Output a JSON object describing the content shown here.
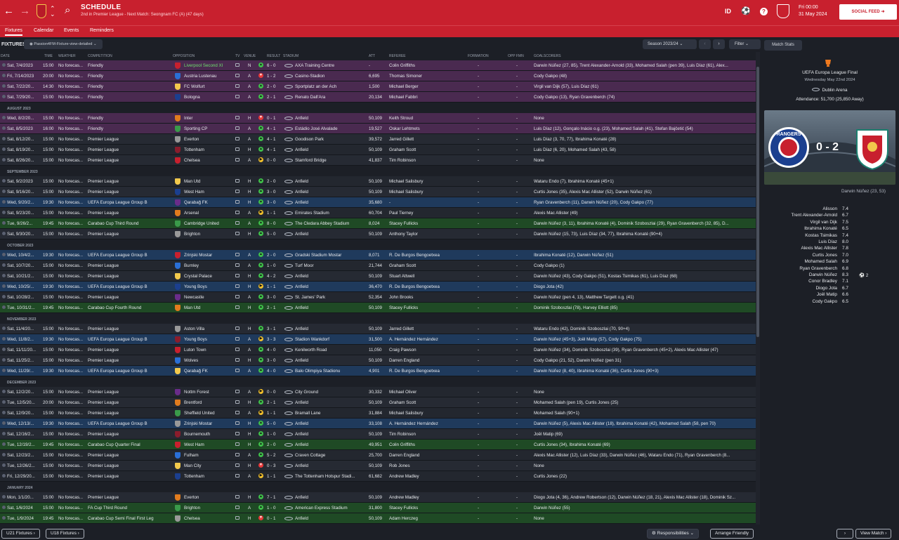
{
  "header": {
    "title": "SCHEDULE",
    "subtitle": "2nd in Premier League - Next Match: Seongnam FC (A) (47 days)",
    "date_time": "Fri 00:00",
    "date": "31 May 2024",
    "lang": "ID",
    "social_feed": "SOCIAL FEED"
  },
  "tabs": [
    "Fixtures",
    "Calendar",
    "Events",
    "Reminders"
  ],
  "toolbar": {
    "label": "FIXTURES",
    "view": "Passion4FM-Fixture-view-detailed",
    "season": "Season 2023/24",
    "filter": "Filter",
    "match_stats": "Match Stats"
  },
  "columns": [
    "DATE",
    "TIME",
    "WEATHER",
    "COMPETITION",
    "OPPOSITION",
    "TV",
    "VENUE",
    "RESULT",
    "STADIUM",
    "ATT",
    "REFEREE",
    "FORMATION",
    "OPP FMN",
    "GOALSCORERS"
  ],
  "months": {
    "aug": "AUGUST 2023",
    "sep": "SEPTEMBER 2023",
    "oct": "OCTOBER 2023",
    "nov": "NOVEMBER 2023",
    "dec": "DECEMBER 2023",
    "jan": "JANUARY 2024"
  },
  "weather": "No forecas...",
  "dash": "-",
  "fixtures": [
    {
      "date": "Sat, 7/4/2023",
      "time": "15:00",
      "comp": "Friendly",
      "opp": "Liverpool Second XI",
      "venue": "N",
      "res": "6 - 0",
      "rc": "w",
      "stadium": "AXA Training Centre",
      "att": "-",
      "ref": "Colin Griffiths",
      "scorers": "Darwin Núñez (27, 85), Trent Alexander-Arnold (33), Mohamed Salah (pen 39), Luis Díaz (61), Alex...",
      "type": "friendly"
    },
    {
      "date": "Fri, 7/14/2023",
      "time": "20:00",
      "comp": "Friendly",
      "opp": "Austria Lustenau",
      "venue": "A",
      "res": "1 - 2",
      "rc": "l",
      "stadium": "Casino-Stadion",
      "att": "6,695",
      "ref": "Thomas Simoner",
      "scorers": "Cody Gakpo (48)",
      "type": "friendly"
    },
    {
      "date": "Sat, 7/22/20...",
      "time": "14:30",
      "comp": "Friendly",
      "opp": "FC Wolfurt",
      "venue": "A",
      "res": "2 - 0",
      "rc": "w",
      "stadium": "Sportplatz an der Ach",
      "att": "1,500",
      "ref": "Michael Berger",
      "scorers": "Virgil van Dijk (57), Luis Díaz (61)",
      "type": "friendly"
    },
    {
      "date": "Sat, 7/29/20...",
      "time": "15:00",
      "comp": "Friendly",
      "opp": "Bologna",
      "venue": "A",
      "res": "2 - 1",
      "rc": "w",
      "stadium": "Renato Dall'Ara",
      "att": "20,134",
      "ref": "Michael Fabbri",
      "scorers": "Cody Gakpo (13), Ryan Gravenberch (74)",
      "type": "friendly"
    },
    {
      "month": "aug"
    },
    {
      "date": "Wed, 8/2/20...",
      "time": "15:00",
      "comp": "Friendly",
      "opp": "Inter",
      "venue": "H",
      "res": "0 - 1",
      "rc": "l",
      "stadium": "Anfield",
      "att": "50,109",
      "ref": "Keith Stroud",
      "scorers": "None",
      "type": "friendly"
    },
    {
      "date": "Sat, 8/5/2023",
      "time": "16:00",
      "comp": "Friendly",
      "opp": "Sporting CP",
      "venue": "A",
      "res": "4 - 1",
      "rc": "w",
      "stadium": "Estádio José Alvalade",
      "att": "19,527",
      "ref": "Oskar Lehtmets",
      "scorers": "Luis Díaz (12), Gonçalo Inácio o.g. (23), Mohamed Salah (41), Stefan Bajčetić (54)",
      "type": "friendly"
    },
    {
      "date": "Sat, 8/12/20...",
      "time": "15:00",
      "comp": "Premier League",
      "opp": "Everton",
      "venue": "A",
      "res": "4 - 1",
      "rc": "w",
      "stadium": "Goodison Park",
      "att": "39,572",
      "ref": "Jarred Gillett",
      "scorers": "Luis Díaz (3, 70, 77), Ibrahima Konaté (28)",
      "type": "lg"
    },
    {
      "date": "Sat, 8/19/20...",
      "time": "15:00",
      "comp": "Premier League",
      "opp": "Tottenham",
      "venue": "H",
      "res": "4 - 1",
      "rc": "w",
      "stadium": "Anfield",
      "att": "50,109",
      "ref": "Graham Scott",
      "scorers": "Luis Díaz (6, 20), Mohamed Salah (43, 58)",
      "type": "lg"
    },
    {
      "date": "Sat, 8/26/20...",
      "time": "15:00",
      "comp": "Premier League",
      "opp": "Chelsea",
      "venue": "A",
      "res": "0 - 0",
      "rc": "d",
      "stadium": "Stamford Bridge",
      "att": "41,837",
      "ref": "Tim Robinson",
      "scorers": "None",
      "type": "lg"
    },
    {
      "month": "sep"
    },
    {
      "date": "Sat, 9/2/2023",
      "time": "15:00",
      "comp": "Premier League",
      "opp": "Man Utd",
      "venue": "H",
      "res": "2 - 0",
      "rc": "w",
      "stadium": "Anfield",
      "att": "50,109",
      "ref": "Michael Salisbury",
      "scorers": "Wataru Endo (7), Ibrahima Konaté (45+1)",
      "type": "lg"
    },
    {
      "date": "Sat, 9/16/20...",
      "time": "15:00",
      "comp": "Premier League",
      "opp": "West Ham",
      "venue": "H",
      "res": "3 - 0",
      "rc": "w",
      "stadium": "Anfield",
      "att": "50,109",
      "ref": "Michael Salisbury",
      "scorers": "Curtis Jones (35), Alexis Mac Allister (52), Darwin Núñez (61)",
      "type": "lg"
    },
    {
      "date": "Wed, 9/20/2...",
      "time": "19:30",
      "comp": "UEFA Europa League Group B",
      "opp": "Qarabağ FK",
      "venue": "H",
      "res": "3 - 0",
      "rc": "w",
      "stadium": "Anfield",
      "att": "35,680",
      "ref": "-",
      "scorers": "Ryan Gravenberch (11), Darwin Núñez (20), Cody Gakpo (77)",
      "type": "euro"
    },
    {
      "date": "Sat, 9/23/20...",
      "time": "15:00",
      "comp": "Premier League",
      "opp": "Arsenal",
      "venue": "A",
      "res": "1 - 1",
      "rc": "d",
      "stadium": "Emirates Stadium",
      "att": "60,704",
      "ref": "Paul Tierney",
      "scorers": "Alexis Mac Allister (49)",
      "type": "lg"
    },
    {
      "date": "Tue, 9/26/2...",
      "time": "19:45",
      "comp": "Carabao Cup Third Round",
      "opp": "Cambridge United",
      "venue": "A",
      "res": "8 - 0",
      "rc": "w",
      "stadium": "The Cledara Abbey Stadium",
      "att": "8,024",
      "ref": "Stacey Fullicks",
      "scorers": "Darwin Núñez (3, 11), Ibrahima Konaté (4), Dominik Szoboszlai (29), Ryan Gravenberch (32, 85), D...",
      "type": "cup"
    },
    {
      "date": "Sat, 9/30/20...",
      "time": "15:00",
      "comp": "Premier League",
      "opp": "Brighton",
      "venue": "H",
      "res": "5 - 0",
      "rc": "w",
      "stadium": "Anfield",
      "att": "50,109",
      "ref": "Anthony Taylor",
      "scorers": "Darwin Núñez (15, 73), Luis Díaz (34, 77), Ibrahima Konaté (90+4)",
      "type": "lg"
    },
    {
      "month": "oct"
    },
    {
      "date": "Wed, 10/4/2...",
      "time": "19:30",
      "comp": "UEFA Europa League Group B",
      "opp": "Zrinjski Mostar",
      "venue": "A",
      "res": "2 - 0",
      "rc": "w",
      "stadium": "Gradski Stadium Mostar",
      "att": "8,071",
      "ref": "R. De Burgos Bengoetxea",
      "scorers": "Ibrahima Konaté (12), Darwin Núñez (51)",
      "type": "euro"
    },
    {
      "date": "Sat, 10/7/20...",
      "time": "15:00",
      "comp": "Premier League",
      "opp": "Burnley",
      "venue": "A",
      "res": "1 - 0",
      "rc": "w",
      "stadium": "Turf Moor",
      "att": "21,744",
      "ref": "Graham Scott",
      "scorers": "Cody Gakpo (1)",
      "type": "lg"
    },
    {
      "date": "Sat, 10/21/2...",
      "time": "15:00",
      "comp": "Premier League",
      "opp": "Crystal Palace",
      "venue": "H",
      "res": "4 - 2",
      "rc": "w",
      "stadium": "Anfield",
      "att": "50,109",
      "ref": "Stuart Attwell",
      "scorers": "Darwin Núñez (43), Cody Gakpo (51), Kostas Tsimikas (61), Luis Díaz (68)",
      "type": "lg"
    },
    {
      "date": "Wed, 10/25/...",
      "time": "19:30",
      "comp": "UEFA Europa League Group B",
      "opp": "Young Boys",
      "venue": "H",
      "res": "1 - 1",
      "rc": "d",
      "stadium": "Anfield",
      "att": "36,470",
      "ref": "R. De Burgos Bengoetxea",
      "scorers": "Diogo Jota (42)",
      "type": "euro"
    },
    {
      "date": "Sat, 10/28/2...",
      "time": "15:00",
      "comp": "Premier League",
      "opp": "Newcastle",
      "venue": "A",
      "res": "3 - 0",
      "rc": "w",
      "stadium": "St. James' Park",
      "att": "52,354",
      "ref": "John Brooks",
      "scorers": "Darwin Núñez (pen 4, 13), Matthew Targett o.g. (41)",
      "type": "lg"
    },
    {
      "date": "Tue, 10/31/2...",
      "time": "19:45",
      "comp": "Carabao Cup Fourth Round",
      "opp": "Man Utd",
      "venue": "H",
      "res": "2 - 1",
      "rc": "w",
      "stadium": "Anfield",
      "att": "50,109",
      "ref": "Stacey Fullicks",
      "scorers": "Dominik Szoboszlai (78), Harvey Elliott (85)",
      "type": "cup"
    },
    {
      "month": "nov"
    },
    {
      "date": "Sat, 11/4/20...",
      "time": "15:00",
      "comp": "Premier League",
      "opp": "Aston Villa",
      "venue": "H",
      "res": "3 - 1",
      "rc": "w",
      "stadium": "Anfield",
      "att": "50,109",
      "ref": "Jarred Gillett",
      "scorers": "Wataru Endo (42), Dominik Szoboszlai (70, 90+4)",
      "type": "lg"
    },
    {
      "date": "Wed, 11/8/2...",
      "time": "19:30",
      "comp": "UEFA Europa League Group B",
      "opp": "Young Boys",
      "venue": "A",
      "res": "3 - 3",
      "rc": "d",
      "stadium": "Stadion Wankdorf",
      "att": "31,500",
      "ref": "A. Hernández Hernández",
      "scorers": "Darwin Núñez (45+3), Joël Matip (57), Cody Gakpo (75)",
      "type": "euro"
    },
    {
      "date": "Sat, 11/11/20...",
      "time": "15:00",
      "comp": "Premier League",
      "opp": "Luton Town",
      "venue": "A",
      "res": "4 - 0",
      "rc": "w",
      "stadium": "Kenilworth Road",
      "att": "11,050",
      "ref": "Craig Pawson",
      "scorers": "Darwin Núñez (34), Dominik Szoboszlai (39), Ryan Gravenberch (45+2), Alexis Mac Allister (47)",
      "type": "lg"
    },
    {
      "date": "Sat, 11/25/2...",
      "time": "15:00",
      "comp": "Premier League",
      "opp": "Wolves",
      "venue": "H",
      "res": "3 - 0",
      "rc": "w",
      "stadium": "Anfield",
      "att": "50,109",
      "ref": "Darren England",
      "scorers": "Cody Gakpo (21, 52), Darwin Núñez (pen 31)",
      "type": "lg"
    },
    {
      "date": "Wed, 11/29/...",
      "time": "19:30",
      "comp": "UEFA Europa League Group B",
      "opp": "Qarabağ FK",
      "venue": "A",
      "res": "4 - 0",
      "rc": "w",
      "stadium": "Bakı Olimpiya Stadionu",
      "att": "4,901",
      "ref": "R. De Burgos Bengoetxea",
      "scorers": "Darwin Núñez (8, 40), Ibrahima Konaté (36), Curtis Jones (90+3)",
      "type": "euro"
    },
    {
      "month": "dec"
    },
    {
      "date": "Sat, 12/2/20...",
      "time": "15:00",
      "comp": "Premier League",
      "opp": "Nottm Forest",
      "venue": "A",
      "res": "0 - 0",
      "rc": "d",
      "stadium": "City Ground",
      "att": "30,332",
      "ref": "Michael Oliver",
      "scorers": "None",
      "type": "lg"
    },
    {
      "date": "Tue, 12/5/20...",
      "time": "20:00",
      "comp": "Premier League",
      "opp": "Brentford",
      "venue": "H",
      "res": "2 - 1",
      "rc": "w",
      "stadium": "Anfield",
      "att": "50,109",
      "ref": "Graham Scott",
      "scorers": "Mohamed Salah (pen 19), Curtis Jones (25)",
      "type": "lg"
    },
    {
      "date": "Sat, 12/9/20...",
      "time": "15:00",
      "comp": "Premier League",
      "opp": "Sheffield United",
      "venue": "A",
      "res": "1 - 1",
      "rc": "d",
      "stadium": "Bramall Lane",
      "att": "31,884",
      "ref": "Michael Salisbury",
      "scorers": "Mohamed Salah (90+1)",
      "type": "lg"
    },
    {
      "date": "Wed, 12/13/...",
      "time": "19:30",
      "comp": "UEFA Europa League Group B",
      "opp": "Zrinjski Mostar",
      "venue": "H",
      "res": "5 - 0",
      "rc": "w",
      "stadium": "Anfield",
      "att": "33,108",
      "ref": "A. Hernández Hernández",
      "scorers": "Darwin Núñez (5), Alexis Mac Allister (18), Ibrahima Konaté (42), Mohamed Salah (58, pen 70)",
      "type": "euro"
    },
    {
      "date": "Sat, 12/16/2...",
      "time": "15:00",
      "comp": "Premier League",
      "opp": "Bournemouth",
      "venue": "H",
      "res": "1 - 0",
      "rc": "w",
      "stadium": "Anfield",
      "att": "50,109",
      "ref": "Tim Robinson",
      "scorers": "Joël Matip (69)",
      "type": "lg"
    },
    {
      "date": "Tue, 12/19/2...",
      "time": "19:45",
      "comp": "Carabao Cup Quarter Final",
      "opp": "West Ham",
      "venue": "H",
      "res": "2 - 0",
      "rc": "w",
      "stadium": "Anfield",
      "att": "49,951",
      "ref": "Colin Griffiths",
      "scorers": "Curtis Jones (34), Ibrahima Konaté (69)",
      "type": "cup"
    },
    {
      "date": "Sat, 12/23/2...",
      "time": "15:00",
      "comp": "Premier League",
      "opp": "Fulham",
      "venue": "A",
      "res": "5 - 2",
      "rc": "w",
      "stadium": "Craven Cottage",
      "att": "25,700",
      "ref": "Darren England",
      "scorers": "Alexis Mac Allister (12), Luis Díaz (33), Darwin Núñez (46), Wataru Endo (71), Ryan Gravenberch (8...",
      "type": "lg"
    },
    {
      "date": "Tue, 12/26/2...",
      "time": "15:00",
      "comp": "Premier League",
      "opp": "Man City",
      "venue": "H",
      "res": "0 - 3",
      "rc": "l",
      "stadium": "Anfield",
      "att": "50,109",
      "ref": "Rob Jones",
      "scorers": "None",
      "type": "lg"
    },
    {
      "date": "Fri, 12/29/20...",
      "time": "15:00",
      "comp": "Premier League",
      "opp": "Tottenham",
      "venue": "A",
      "res": "1 - 1",
      "rc": "d",
      "stadium": "The Tottenham Hotspur Stadi...",
      "att": "61,682",
      "ref": "Andrew Madley",
      "scorers": "Curtis Jones (22)",
      "type": "lg"
    },
    {
      "month": "jan"
    },
    {
      "date": "Mon, 1/1/20...",
      "time": "15:00",
      "comp": "Premier League",
      "opp": "Everton",
      "venue": "H",
      "res": "7 - 1",
      "rc": "w",
      "stadium": "Anfield",
      "att": "50,109",
      "ref": "Andrew Madley",
      "scorers": "Diogo Jota (4, 36), Andrew Robertson (12), Darwin Núñez (18, 21), Alexis Mac Allister (18), Dominik Sz...",
      "type": "lg"
    },
    {
      "date": "Sat, 1/6/2024",
      "time": "15:00",
      "comp": "FA Cup Third Round",
      "opp": "Brighton",
      "venue": "A",
      "res": "1 - 0",
      "rc": "w",
      "stadium": "American Express Stadium",
      "att": "31,800",
      "ref": "Stacey Fullicks",
      "scorers": "Darwin Núñez (55)",
      "type": "cup"
    },
    {
      "date": "Tue, 1/9/2024",
      "time": "19:45",
      "comp": "Carabao Cup Semi Final First Leg",
      "opp": "Chelsea",
      "venue": "H",
      "res": "0 - 1",
      "rc": "l",
      "stadium": "Anfield",
      "att": "50,109",
      "ref": "Adam Herczeg",
      "scorers": "None",
      "type": "cup"
    }
  ],
  "match": {
    "competition": "UEFA Europa League Final",
    "date": "Wednesday May 22nd 2024",
    "venue": "Dublin Arena",
    "attendance": "Attendance: 51,700 (25,850 Away)",
    "score": "0 - 2",
    "home_crest_text": "RANGERS FOOTBALL CLUB",
    "scorer": "Darwin Núñez (23, 53)",
    "ratings": [
      {
        "name": "Alisson",
        "rating": "7.4"
      },
      {
        "name": "Trent Alexander-Arnold",
        "rating": "6.7"
      },
      {
        "name": "Virgil van Dijk",
        "rating": "7.5"
      },
      {
        "name": "Ibrahima Konaté",
        "rating": "6.5"
      },
      {
        "name": "Kostas Tsimikas",
        "rating": "7.4"
      },
      {
        "name": "Luis Díaz",
        "rating": "8.0"
      },
      {
        "name": "Alexis Mac Allister",
        "rating": "7.8"
      },
      {
        "name": "Curtis Jones",
        "rating": "7.0"
      },
      {
        "name": "Mohamed Salah",
        "rating": "6.9"
      },
      {
        "name": "Ryan Gravenberch",
        "rating": "6.8"
      },
      {
        "name": "Darwin Núñez",
        "rating": "8.3"
      },
      {
        "name": "Conor Bradley",
        "rating": "7.1"
      },
      {
        "name": "Diogo Jota",
        "rating": "6.7"
      },
      {
        "name": "Joël Matip",
        "rating": "6.6"
      },
      {
        "name": "Cody Gakpo",
        "rating": "6.5"
      }
    ],
    "goals_badge": "2"
  },
  "bottom": {
    "u21": "U21 Fixtures",
    "u18": "U18 Fixtures",
    "responsibilities": "Responsibilities",
    "arrange": "Arrange Friendly",
    "view_match": "View Match"
  },
  "colors": {
    "brand": "#c8202e",
    "friendly": "#4a2a50",
    "europa": "#1f3a5c",
    "cup": "#1f4a25"
  }
}
